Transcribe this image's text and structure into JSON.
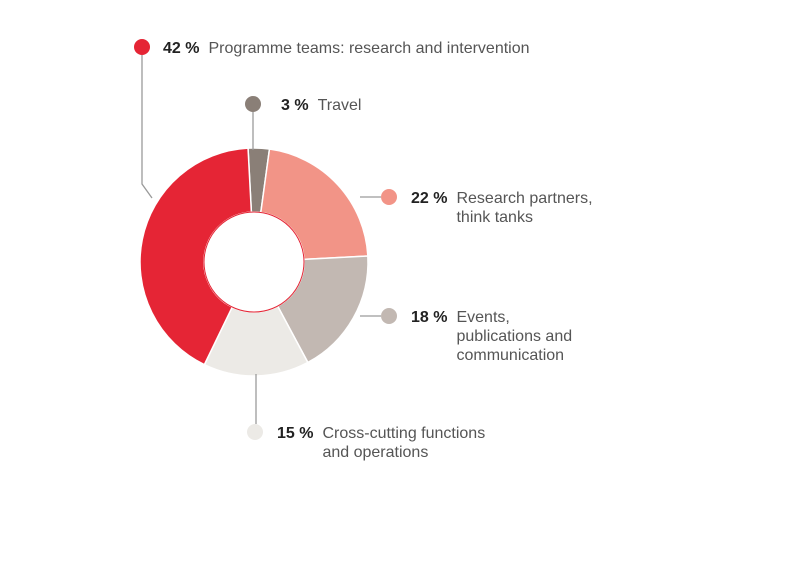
{
  "chart_data": {
    "type": "pie",
    "style": "donut",
    "unit": "%",
    "slices": [
      {
        "value": 3,
        "pct_label": "3 %",
        "label_lines": [
          "Travel"
        ],
        "color": "#8a7f77"
      },
      {
        "value": 22,
        "pct_label": "22 %",
        "label_lines": [
          "Research partners,",
          "think tanks"
        ],
        "color": "#f29487"
      },
      {
        "value": 18,
        "pct_label": "18 %",
        "label_lines": [
          "Events,",
          "publications and",
          "communication"
        ],
        "color": "#c2b8b2"
      },
      {
        "value": 15,
        "pct_label": "15 %",
        "label_lines": [
          "Cross-cutting functions",
          "and operations"
        ],
        "color": "#eceae6"
      },
      {
        "value": 42,
        "pct_label": "42 %",
        "label_lines": [
          "Programme teams: research and intervention"
        ],
        "color": "#e52535"
      }
    ]
  }
}
